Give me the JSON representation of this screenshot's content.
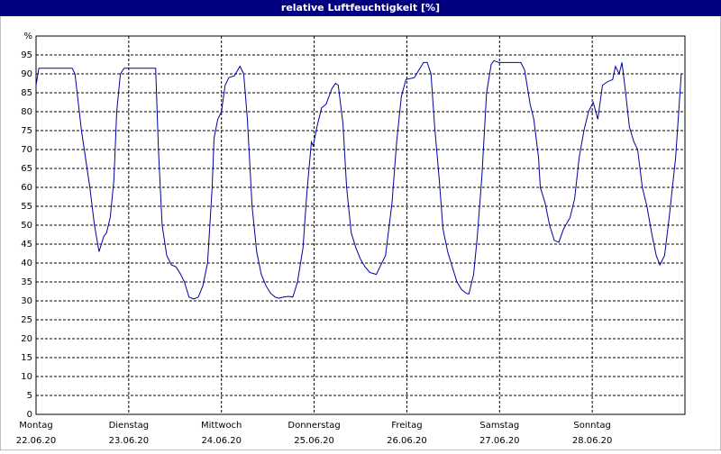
{
  "chart_data": {
    "type": "line",
    "title": "relative Luftfeuchtigkeit [%]",
    "xlim": [
      0,
      7
    ],
    "xticks": [
      {
        "value": 0,
        "label": "Montag"
      },
      {
        "value": 1,
        "label": "Dienstag"
      },
      {
        "value": 2,
        "label": "Mittwoch"
      },
      {
        "value": 3,
        "label": "Donnerstag"
      },
      {
        "value": 4,
        "label": "Freitag"
      },
      {
        "value": 5,
        "label": "Samstag"
      },
      {
        "value": 6,
        "label": "Sonntag"
      }
    ],
    "xtick_dates": [
      "22.06.20",
      "23.06.20",
      "24.06.20",
      "25.06.20",
      "26.06.20",
      "27.06.20",
      "28.06.20"
    ],
    "ylim": [
      0,
      100
    ],
    "yticks": [
      0,
      5,
      10,
      15,
      20,
      25,
      30,
      35,
      40,
      45,
      50,
      55,
      60,
      65,
      70,
      75,
      80,
      85,
      90,
      95,
      {
        "value": 100,
        "label": "%"
      }
    ],
    "grid": true,
    "series": [
      {
        "color": "#0000a0",
        "x": [
          0,
          0.03,
          0.39,
          0.42,
          0.49,
          0.58,
          0.63,
          0.68,
          0.73,
          0.76,
          0.8,
          0.84,
          0.87,
          0.91,
          0.95,
          1.29,
          1.32,
          1.36,
          1.41,
          1.46,
          1.51,
          1.56,
          1.6,
          1.65,
          1.7,
          1.75,
          1.8,
          1.85,
          1.9,
          1.92,
          1.96,
          2.0,
          2.04,
          2.08,
          2.14,
          2.2,
          2.24,
          2.28,
          2.33,
          2.38,
          2.43,
          2.48,
          2.53,
          2.58,
          2.62,
          2.67,
          2.72,
          2.77,
          2.82,
          2.88,
          2.92,
          2.97,
          2.99,
          3.03,
          3.08,
          3.13,
          3.19,
          3.23,
          3.26,
          3.31,
          3.35,
          3.4,
          3.45,
          3.5,
          3.55,
          3.6,
          3.67,
          3.71,
          3.77,
          3.84,
          3.89,
          3.94,
          3.99,
          4.08,
          4.13,
          4.18,
          4.22,
          4.26,
          4.3,
          4.35,
          4.39,
          4.44,
          4.49,
          4.54,
          4.59,
          4.64,
          4.67,
          4.72,
          4.76,
          4.81,
          4.86,
          4.91,
          4.94,
          4.99,
          5.06,
          5.23,
          5.27,
          5.33,
          5.37,
          5.42,
          5.44,
          5.49,
          5.54,
          5.59,
          5.64,
          5.69,
          5.76,
          5.81,
          5.86,
          5.91,
          5.96,
          6.01,
          6.06,
          6.11,
          6.17,
          6.22,
          6.25,
          6.29,
          6.32,
          6.36,
          6.4,
          6.45,
          6.49,
          6.54,
          6.59,
          6.64,
          6.69,
          6.73,
          6.78,
          6.83,
          6.9,
          6.96
        ],
        "values": [
          87,
          91.5,
          91.5,
          90,
          75,
          60,
          50,
          43,
          47,
          48,
          52,
          62,
          80,
          90,
          91.5,
          91.5,
          70,
          50,
          42,
          39.5,
          39,
          37,
          35,
          31,
          30.5,
          31,
          34,
          40,
          60,
          73,
          78,
          80,
          87,
          89,
          89.5,
          92,
          90,
          78,
          55,
          43,
          37,
          34,
          32,
          31,
          30.7,
          31,
          31.2,
          31,
          35,
          44,
          58,
          72,
          71,
          76,
          81,
          82,
          86,
          87.5,
          87,
          77,
          60,
          48,
          44,
          41,
          39,
          37.5,
          37,
          39,
          42,
          56,
          72,
          84,
          88.5,
          89,
          91,
          93,
          93,
          90,
          76,
          62,
          49,
          43,
          39,
          35,
          33,
          32,
          31.8,
          37,
          47,
          63,
          85,
          92.5,
          93.5,
          93,
          93,
          93,
          91,
          82,
          78,
          68,
          60,
          56,
          50,
          46,
          45.5,
          49,
          52,
          57,
          68,
          75,
          80,
          82.5,
          78,
          87,
          88,
          88.5,
          92,
          90,
          93,
          85,
          76,
          72,
          70,
          60,
          55,
          48,
          42,
          39.5,
          42,
          52,
          68,
          90
        ]
      }
    ]
  }
}
